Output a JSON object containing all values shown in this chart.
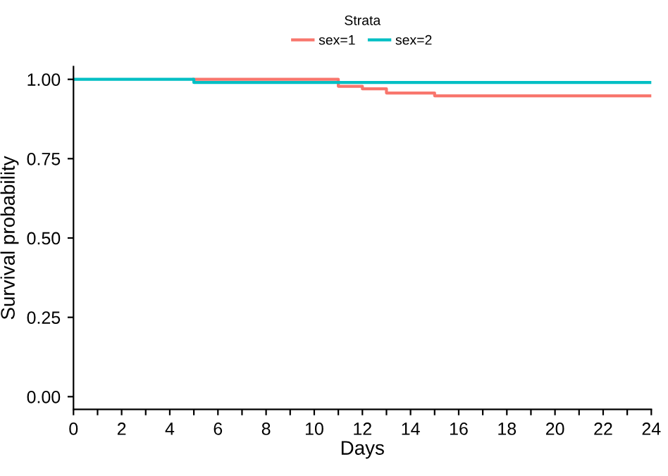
{
  "chart_data": {
    "type": "step",
    "xlabel": "Days",
    "ylabel": "Survival probability",
    "legend_title": "Strata",
    "legend": "top",
    "series": [
      {
        "name": "sex=1",
        "color": "#f8766d",
        "x": [
          5,
          11,
          12,
          13,
          15,
          24
        ],
        "values": [
          1.0,
          0.978,
          0.97,
          0.957,
          0.948,
          0.948
        ]
      },
      {
        "name": "sex=2",
        "color": "#00bfc4",
        "x": [
          0,
          5,
          24
        ],
        "values": [
          1.0,
          0.99,
          0.99
        ]
      }
    ],
    "xlim": [
      0,
      24
    ],
    "xticks": [
      0,
      {
        "value": 1,
        "label": null
      },
      2,
      {
        "value": 3,
        "label": null
      },
      4,
      {
        "value": 5,
        "label": null
      },
      6,
      {
        "value": 7,
        "label": null
      },
      8,
      {
        "value": 9,
        "label": null
      },
      10,
      {
        "value": 11,
        "label": null
      },
      12,
      {
        "value": 13,
        "label": null
      },
      14,
      {
        "value": 15,
        "label": null
      },
      16,
      {
        "value": 17,
        "label": null
      },
      18,
      {
        "value": 19,
        "label": null
      },
      20,
      {
        "value": 21,
        "label": null
      },
      22,
      {
        "value": 23,
        "label": null
      },
      24
    ],
    "ylim": [
      -0.04,
      1.04
    ],
    "yticks": [
      {
        "value": 0,
        "label": "0.00"
      },
      {
        "value": 0.25,
        "label": "0.25"
      },
      {
        "value": 0.5,
        "label": "0.50"
      },
      {
        "value": 0.75,
        "label": "0.75"
      },
      {
        "value": 1,
        "label": "1.00"
      }
    ],
    "grid": false
  }
}
